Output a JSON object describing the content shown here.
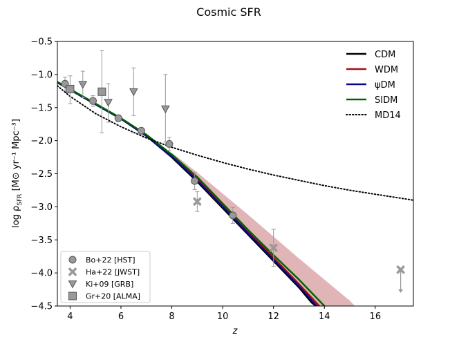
{
  "chart_data": {
    "type": "line",
    "title": "Cosmic SFR",
    "xlabel": "z",
    "ylabel_main": "log ρ",
    "ylabel_sub": "SFR",
    "ylabel_unit": " [M⊙ yr⁻¹ Mpc⁻³]",
    "xlim": [
      3.5,
      17.5
    ],
    "ylim": [
      -4.5,
      -0.5
    ],
    "xticks": [
      4,
      6,
      8,
      10,
      12,
      14,
      16
    ],
    "yticks": [
      -0.5,
      -1.0,
      -1.5,
      -2.0,
      -2.5,
      -3.0,
      -3.5,
      -4.0,
      -4.5
    ],
    "ytick_labels": [
      "−0.5",
      "−1.0",
      "−1.5",
      "−2.0",
      "−2.5",
      "−3.0",
      "−3.5",
      "−4.0",
      "−4.5"
    ],
    "series": [
      {
        "name": "CDM",
        "color": "#000000",
        "style": "solid",
        "x": [
          3.5,
          4,
          5,
          6,
          7,
          8,
          9,
          10,
          11,
          12,
          13,
          13.5,
          14
        ],
        "y": [
          -1.12,
          -1.23,
          -1.45,
          -1.67,
          -1.93,
          -2.25,
          -2.62,
          -3.02,
          -3.42,
          -3.82,
          -4.22,
          -4.45,
          -4.6
        ]
      },
      {
        "name": "WDM",
        "color": "#a50f15",
        "style": "solid",
        "x": [
          3.5,
          4,
          5,
          6,
          7,
          8,
          9,
          10,
          11,
          12,
          13,
          13.8,
          14.2
        ],
        "y": [
          -1.12,
          -1.23,
          -1.45,
          -1.67,
          -1.92,
          -2.22,
          -2.57,
          -2.97,
          -3.37,
          -3.77,
          -4.17,
          -4.5,
          -4.65
        ]
      },
      {
        "name": "ψDM",
        "color": "#08088c",
        "style": "solid",
        "x": [
          3.5,
          4,
          5,
          6,
          7,
          8,
          9,
          10,
          11,
          12,
          13,
          13.7,
          14.1
        ],
        "y": [
          -1.12,
          -1.23,
          -1.45,
          -1.67,
          -1.93,
          -2.24,
          -2.6,
          -3.0,
          -3.4,
          -3.8,
          -4.2,
          -4.5,
          -4.65
        ]
      },
      {
        "name": "SIDM",
        "color": "#006400",
        "style": "solid",
        "x": [
          3.5,
          4,
          5,
          6,
          7,
          8,
          9,
          10,
          11,
          12,
          13,
          14,
          14.4
        ],
        "y": [
          -1.11,
          -1.22,
          -1.44,
          -1.66,
          -1.91,
          -2.21,
          -2.55,
          -2.95,
          -3.35,
          -3.73,
          -4.1,
          -4.5,
          -4.65
        ]
      },
      {
        "name": "MD14",
        "color": "#000000",
        "style": "dotted",
        "x": [
          3.5,
          4,
          5,
          6,
          7,
          8,
          9,
          10,
          11,
          12,
          13,
          14,
          15,
          16,
          17,
          17.5
        ],
        "y": [
          -1.17,
          -1.33,
          -1.59,
          -1.79,
          -1.96,
          -2.1,
          -2.22,
          -2.33,
          -2.43,
          -2.52,
          -2.6,
          -2.68,
          -2.75,
          -2.81,
          -2.87,
          -2.9
        ]
      }
    ],
    "wdm_band": {
      "color": "#d9a3a6",
      "x": [
        8,
        9,
        10,
        11,
        12,
        13,
        14,
        15,
        15.2
      ],
      "upper": [
        -2.18,
        -2.48,
        -2.8,
        -3.12,
        -3.45,
        -3.78,
        -4.1,
        -4.42,
        -4.5
      ],
      "lower": [
        -2.25,
        -2.62,
        -3.02,
        -3.42,
        -3.82,
        -4.22,
        -4.62,
        -4.62,
        -4.62
      ]
    },
    "observations": [
      {
        "name": "Bo+22 [HST]",
        "marker": "circle",
        "color": "#999999",
        "points": [
          {
            "x": 3.8,
            "y": -1.14,
            "ylo": 0.1,
            "yhi": 0.1
          },
          {
            "x": 4.9,
            "y": -1.4,
            "ylo": 0.08,
            "yhi": 0.08
          },
          {
            "x": 5.9,
            "y": -1.66,
            "ylo": 0.05,
            "yhi": 0.05
          },
          {
            "x": 6.8,
            "y": -1.85,
            "ylo": 0.04,
            "yhi": 0.04
          },
          {
            "x": 7.9,
            "y": -2.05,
            "ylo": 0.1,
            "yhi": 0.1
          },
          {
            "x": 8.9,
            "y": -2.61,
            "ylo": 0.13,
            "yhi": 0.13
          },
          {
            "x": 10.4,
            "y": -3.13,
            "ylo": 0.12,
            "yhi": 0.12
          }
        ]
      },
      {
        "name": "Ha+22 [JWST]",
        "marker": "x",
        "color": "#999999",
        "points": [
          {
            "x": 9.0,
            "y": -2.92,
            "ylo": 0.15,
            "yhi": 0.15
          },
          {
            "x": 12.0,
            "y": -3.62,
            "ylo": 0.28,
            "yhi": 0.28
          },
          {
            "x": 17.0,
            "y": -3.95,
            "upper_limit_to": -4.3
          }
        ]
      },
      {
        "name": "Ki+09 [GRB]",
        "marker": "triangle-down",
        "color": "#999999",
        "points": [
          {
            "x": 4.5,
            "y": -1.15,
            "ylo": 0.2,
            "yhi": 0.2
          },
          {
            "x": 5.5,
            "y": -1.42,
            "ylo": 0.3,
            "yhi": 0.28
          },
          {
            "x": 6.5,
            "y": -1.26,
            "ylo": 0.36,
            "yhi": 0.36
          },
          {
            "x": 7.75,
            "y": -1.52,
            "ylo": 0.5,
            "yhi": 0.52
          }
        ]
      },
      {
        "name": "Gr+20 [ALMA]",
        "marker": "square",
        "color": "#999999",
        "points": [
          {
            "x": 4.0,
            "y": -1.22,
            "ylo": 0.22,
            "yhi": 0.2
          },
          {
            "x": 5.25,
            "y": -1.26,
            "ylo": 0.62,
            "yhi": 0.62
          }
        ]
      }
    ],
    "legend": {
      "lines": [
        "CDM",
        "WDM",
        "ψDM",
        "SIDM",
        "MD14"
      ],
      "markers": [
        "Bo+22 [HST]",
        "Ha+22 [JWST]",
        "Ki+09 [GRB]",
        "Gr+20 [ALMA]"
      ]
    }
  }
}
